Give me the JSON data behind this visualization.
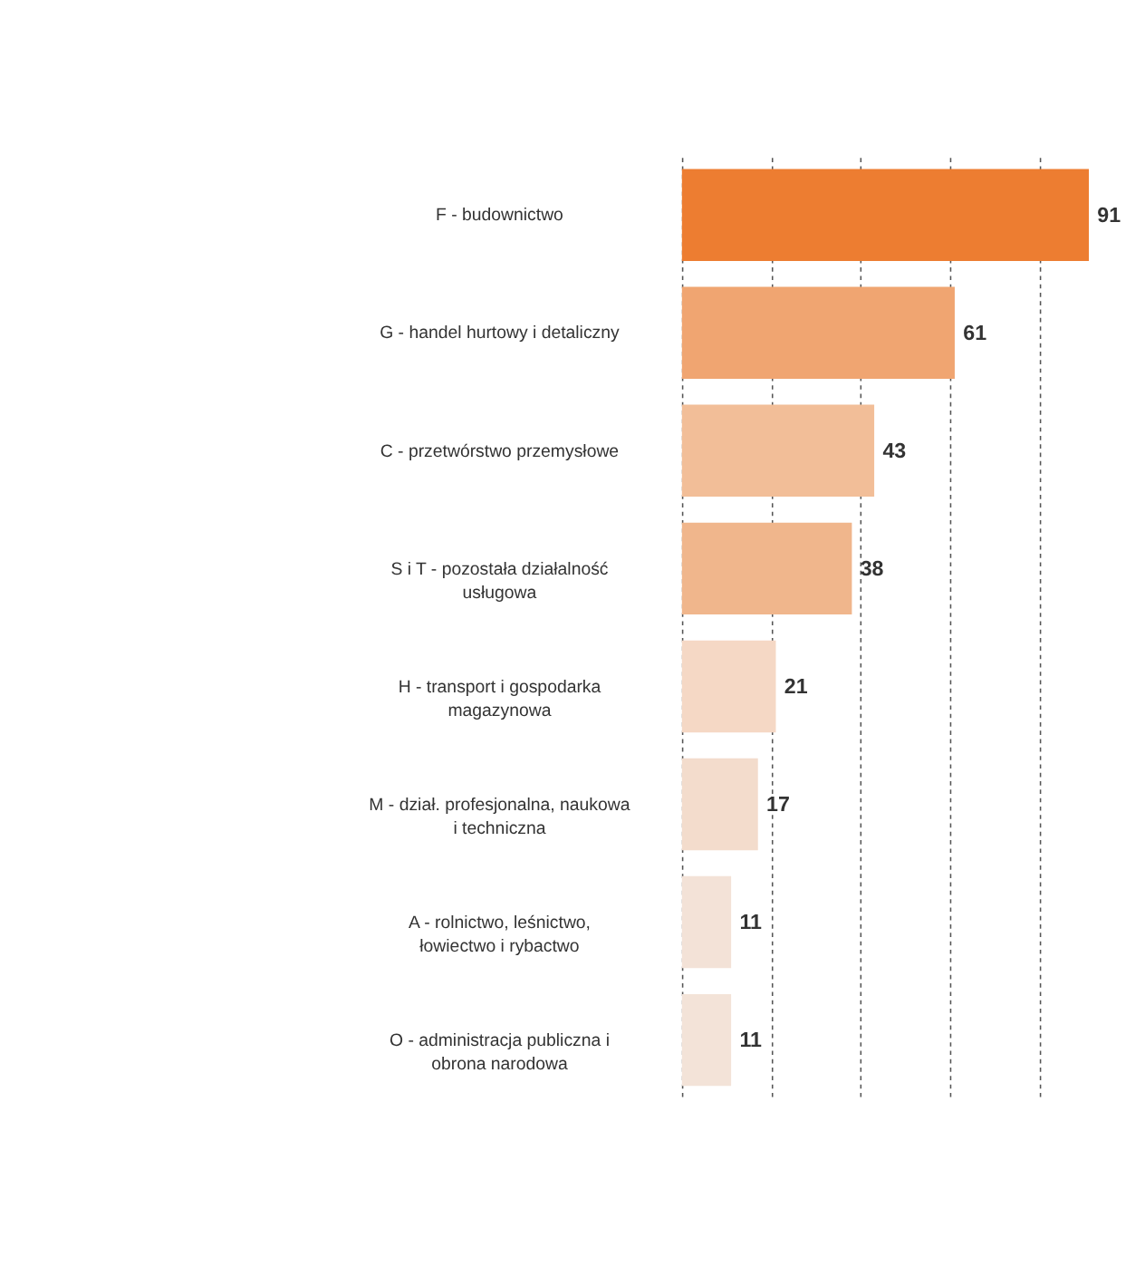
{
  "chart_data": {
    "type": "bar",
    "orientation": "horizontal",
    "categories": [
      "F - budownictwo",
      "G - handel hurtowy i detaliczny",
      "C - przetwórstwo przemysłowe",
      "S i T - pozostała działalność usługowa",
      "H - transport i gospodarka magazynowa",
      "M - dział. profesjonalna, naukowa i techniczna",
      "A - rolnictwo, leśnictwo, łowiectwo i rybactwo",
      "O - administracja publiczna i obrona narodowa"
    ],
    "values": [
      91,
      61,
      43,
      38,
      21,
      17,
      11,
      11
    ],
    "colors": [
      "#ed7d31",
      "#f0a571",
      "#f2be98",
      "#f0b68c",
      "#f5d8c5",
      "#f3dccc",
      "#f3e2d7",
      "#f3e3d8"
    ],
    "xticks": [
      {
        "value": 0,
        "label": null
      },
      {
        "value": 20,
        "label": null
      },
      {
        "value": 40,
        "label": null
      },
      {
        "value": 60,
        "label": null
      },
      {
        "value": 80,
        "label": null
      }
    ],
    "grid": "x",
    "tick_labels": false,
    "data_labels": true,
    "legend": false
  }
}
